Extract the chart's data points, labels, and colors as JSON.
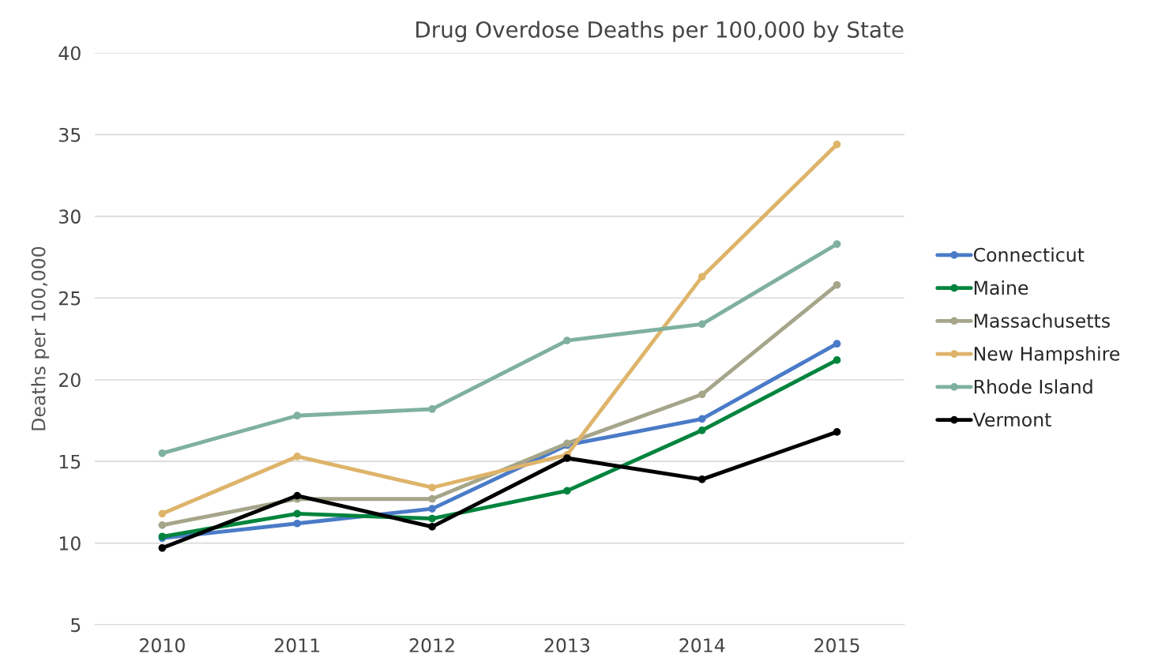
{
  "chart_data": {
    "type": "line",
    "title": "Drug Overdose Deaths per 100,000 by State",
    "ylabel": "Deaths per 100,000",
    "categories": [
      "2010",
      "2011",
      "2012",
      "2013",
      "2014",
      "2015"
    ],
    "series": [
      {
        "name": "Connecticut",
        "color": "#4a7bc8",
        "values": [
          10.3,
          11.2,
          12.1,
          16.0,
          17.6,
          22.2
        ]
      },
      {
        "name": "Maine",
        "color": "#00843d",
        "values": [
          10.4,
          11.8,
          11.5,
          13.2,
          16.9,
          21.2
        ]
      },
      {
        "name": "Massachusetts",
        "color": "#a5a58a",
        "values": [
          11.1,
          12.7,
          12.7,
          16.1,
          19.1,
          25.8
        ]
      },
      {
        "name": "New Hampshire",
        "color": "#deb46a",
        "values": [
          11.8,
          15.3,
          13.4,
          15.4,
          26.3,
          34.4
        ]
      },
      {
        "name": "Rhode Island",
        "color": "#7fb0a0",
        "values": [
          15.5,
          17.8,
          18.2,
          22.4,
          23.4,
          28.3
        ]
      },
      {
        "name": "Vermont",
        "color": "#000000",
        "values": [
          9.7,
          12.9,
          11.0,
          15.2,
          13.9,
          16.8
        ]
      }
    ],
    "ylim": [
      5,
      40
    ],
    "yticks": [
      5,
      10,
      15,
      20,
      25,
      30,
      35,
      40
    ],
    "grid": "y",
    "legend": "right",
    "marker": "circle",
    "line_style": "solid"
  }
}
